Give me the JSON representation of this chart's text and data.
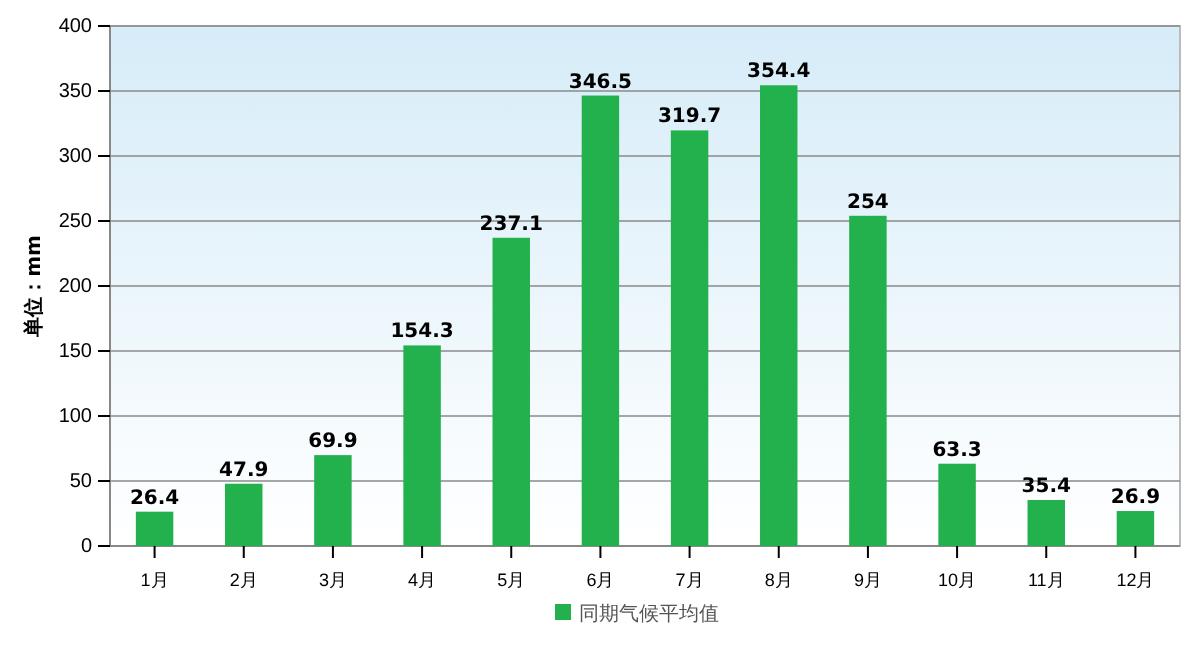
{
  "chart_data": {
    "type": "bar",
    "ylabel": "单位：mm",
    "categories": [
      "1月",
      "2月",
      "3月",
      "4月",
      "5月",
      "6月",
      "7月",
      "8月",
      "9月",
      "10月",
      "11月",
      "12月"
    ],
    "series": [
      {
        "name": "同期气候平均值",
        "color": "#22b14c",
        "values": [
          26.4,
          47.9,
          69.9,
          154.3,
          237.1,
          346.5,
          319.7,
          354.4,
          254,
          63.3,
          35.4,
          26.9
        ]
      }
    ],
    "ylim": [
      0,
      400
    ],
    "yticks": [
      0,
      50,
      100,
      150,
      200,
      250,
      300,
      350,
      400
    ],
    "grid": "y",
    "legend": "bottom",
    "data_labels": true
  }
}
